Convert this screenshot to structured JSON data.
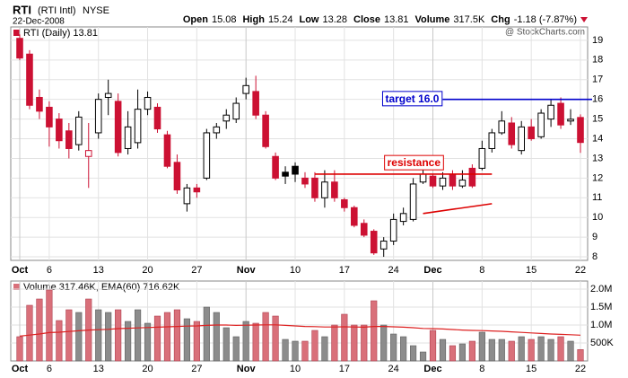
{
  "header": {
    "symbol": "RTI",
    "name": "(RTI Intl)",
    "exchange": "NYSE",
    "date": "22-Dec-2008",
    "watermark": "@ StockCharts.com",
    "items": [
      {
        "label": "Open",
        "value": "15.08"
      },
      {
        "label": "High",
        "value": "15.24"
      },
      {
        "label": "Low",
        "value": "13.28"
      },
      {
        "label": "Close",
        "value": "13.81"
      },
      {
        "label": "Volume",
        "value": "317.5K"
      },
      {
        "label": "Chg",
        "value": "-1.18 (-7.87%)"
      }
    ]
  },
  "chart_data": {
    "type": "candlestick",
    "legend": "RTI (Daily) 13.81",
    "up_color": "#000000",
    "down_color": "#cc1133",
    "grid": true,
    "x": [
      "2008-10-01",
      "2008-10-02",
      "2008-10-03",
      "2008-10-06",
      "2008-10-07",
      "2008-10-08",
      "2008-10-09",
      "2008-10-10",
      "2008-10-13",
      "2008-10-14",
      "2008-10-15",
      "2008-10-16",
      "2008-10-17",
      "2008-10-20",
      "2008-10-21",
      "2008-10-22",
      "2008-10-23",
      "2008-10-24",
      "2008-10-27",
      "2008-10-28",
      "2008-10-29",
      "2008-10-30",
      "2008-10-31",
      "2008-11-03",
      "2008-11-04",
      "2008-11-05",
      "2008-11-06",
      "2008-11-07",
      "2008-11-10",
      "2008-11-11",
      "2008-11-12",
      "2008-11-13",
      "2008-11-14",
      "2008-11-17",
      "2008-11-18",
      "2008-11-19",
      "2008-11-20",
      "2008-11-21",
      "2008-11-24",
      "2008-11-25",
      "2008-11-26",
      "2008-11-28",
      "2008-12-01",
      "2008-12-02",
      "2008-12-03",
      "2008-12-04",
      "2008-12-05",
      "2008-12-08",
      "2008-12-09",
      "2008-12-10",
      "2008-12-11",
      "2008-12-12",
      "2008-12-15",
      "2008-12-16",
      "2008-12-17",
      "2008-12-18",
      "2008-12-19",
      "2008-12-22"
    ],
    "xticks": [
      {
        "value": "2008-10-01",
        "label": "Oct"
      },
      {
        "value": "2008-10-06",
        "label": "6"
      },
      {
        "value": "2008-10-13",
        "label": "13"
      },
      {
        "value": "2008-10-20",
        "label": "20"
      },
      {
        "value": "2008-10-27",
        "label": "27"
      },
      {
        "value": "2008-11-03",
        "label": "Nov"
      },
      {
        "value": "2008-11-10",
        "label": "10"
      },
      {
        "value": "2008-11-17",
        "label": "17"
      },
      {
        "value": "2008-11-24",
        "label": "24"
      },
      {
        "value": "2008-12-01",
        "label": "Dec"
      },
      {
        "value": "2008-12-08",
        "label": "8"
      },
      {
        "value": "2008-12-15",
        "label": "15"
      },
      {
        "value": "2008-12-22",
        "label": "22"
      }
    ],
    "open": [
      19.1,
      18.3,
      16.1,
      15.6,
      15.0,
      14.4,
      13.7,
      13.1,
      14.3,
      16.1,
      15.9,
      13.5,
      13.8,
      15.5,
      15.6,
      14.2,
      12.8,
      10.7,
      11.5,
      12.0,
      14.3,
      14.9,
      15.0,
      16.3,
      16.4,
      15.2,
      13.1,
      12.3,
      12.6,
      12.0,
      12.0,
      11.0,
      11.8,
      10.9,
      10.5,
      9.7,
      9.3,
      8.4,
      8.8,
      9.8,
      9.9,
      11.8,
      12.1,
      11.6,
      12.2,
      11.6,
      12.5,
      12.5,
      13.5,
      14.3,
      14.8,
      13.4,
      14.6,
      14.1,
      15.0,
      15.8,
      14.9,
      15.08
    ],
    "high": [
      19.3,
      18.5,
      16.5,
      15.9,
      15.3,
      14.8,
      15.4,
      14.8,
      16.3,
      17.0,
      16.3,
      15.4,
      16.5,
      16.4,
      15.8,
      14.4,
      13.2,
      11.7,
      11.7,
      14.5,
      14.8,
      15.5,
      16.1,
      17.1,
      17.2,
      15.4,
      13.3,
      12.6,
      12.8,
      12.3,
      12.3,
      12.4,
      12.4,
      11.0,
      10.6,
      9.9,
      9.4,
      9.0,
      10.2,
      10.5,
      12.0,
      12.5,
      12.2,
      12.3,
      12.4,
      12.4,
      12.7,
      13.9,
      14.5,
      15.4,
      15.1,
      14.9,
      15.0,
      15.5,
      16.0,
      16.1,
      15.5,
      15.24
    ],
    "low": [
      18.0,
      15.5,
      15.0,
      13.6,
      13.5,
      13.0,
      13.4,
      11.5,
      14.0,
      15.2,
      13.1,
      13.2,
      13.5,
      15.2,
      14.3,
      12.5,
      11.2,
      10.3,
      11.0,
      11.9,
      14.0,
      14.5,
      14.8,
      16.0,
      15.0,
      13.5,
      11.9,
      11.7,
      11.8,
      11.5,
      10.8,
      10.5,
      10.8,
      10.3,
      9.5,
      9.0,
      8.1,
      8.0,
      8.6,
      9.6,
      9.8,
      11.7,
      11.5,
      11.4,
      11.4,
      11.5,
      11.5,
      12.4,
      13.3,
      14.2,
      13.5,
      13.2,
      13.9,
      14.0,
      14.6,
      14.5,
      14.7,
      13.28
    ],
    "close": [
      18.1,
      15.7,
      15.4,
      14.6,
      13.9,
      13.5,
      15.1,
      13.4,
      16.0,
      16.3,
      13.3,
      14.6,
      15.5,
      16.1,
      14.5,
      12.6,
      11.4,
      11.5,
      11.3,
      14.3,
      14.6,
      15.2,
      15.8,
      16.7,
      15.2,
      13.6,
      12.0,
      12.1,
      12.2,
      11.7,
      11.0,
      11.8,
      11.0,
      10.5,
      9.6,
      9.1,
      8.2,
      8.8,
      9.9,
      10.2,
      11.7,
      12.2,
      11.6,
      12.0,
      11.6,
      11.9,
      11.6,
      13.5,
      14.3,
      14.9,
      13.7,
      14.6,
      14.0,
      15.3,
      15.7,
      14.7,
      14.99,
      13.81
    ],
    "ylim": [
      7.82,
      19.68
    ],
    "yticks": [
      8,
      9,
      10,
      11,
      12,
      13,
      14,
      15,
      16,
      17,
      18,
      19
    ],
    "annotations": [
      {
        "text": "target 16.0",
        "color": "#0000cc",
        "from": "2008-12-02",
        "to": "2008-12-22",
        "values": [
          16,
          16
        ]
      },
      {
        "text": "resistance",
        "color": "#dd0000",
        "from": "2008-11-12",
        "to": "2008-12-09",
        "values": [
          12.2,
          12.2
        ]
      },
      {
        "color": "#dd0000",
        "from": "2008-11-28",
        "to": "2008-12-09",
        "values": [
          10.2,
          10.7
        ]
      }
    ],
    "volume": {
      "legend": "Volume 317.46K, EMA(60) 716.62K",
      "up_color": "#8c8c8c",
      "down_color": "#d9707a",
      "ema_color": "#dd2222",
      "values": [
        675000,
        1550000,
        1725000,
        1975000,
        1125000,
        1425000,
        1350000,
        1725000,
        1425000,
        1350000,
        1425000,
        1100000,
        1425000,
        1050000,
        1250000,
        1350000,
        1425000,
        1175000,
        1100000,
        1500000,
        1350000,
        925000,
        675000,
        1100000,
        1050000,
        1350000,
        1250000,
        600000,
        550000,
        550000,
        850000,
        675000,
        1000000,
        1300000,
        1000000,
        1000000,
        1675000,
        1000000,
        750000,
        675000,
        425000,
        250000,
        850000,
        600000,
        425000,
        475000,
        550000,
        800000,
        600000,
        600000,
        550000,
        675000,
        600000,
        675000,
        600000,
        675000,
        550000,
        317460
      ],
      "ema": [
        690000,
        720000,
        750000,
        790000,
        800000,
        820000,
        840000,
        860000,
        870000,
        880000,
        900000,
        910000,
        920000,
        930000,
        940000,
        950000,
        960000,
        970000,
        975000,
        990000,
        1000000,
        1000000,
        990000,
        995000,
        1000000,
        1005000,
        1005000,
        990000,
        975000,
        960000,
        955000,
        945000,
        945000,
        950000,
        945000,
        940000,
        960000,
        960000,
        950000,
        940000,
        925000,
        905000,
        900000,
        890000,
        875000,
        860000,
        850000,
        845000,
        835000,
        825000,
        810000,
        795000,
        780000,
        765000,
        750000,
        740000,
        730000,
        716620
      ],
      "ylim": [
        0,
        2225000
      ],
      "yticks": [
        {
          "value": 500000,
          "label": "500K"
        },
        {
          "value": 1000000,
          "label": "1.0M"
        },
        {
          "value": 1500000,
          "label": "1.5M"
        },
        {
          "value": 2000000,
          "label": "2.0M"
        }
      ]
    }
  }
}
